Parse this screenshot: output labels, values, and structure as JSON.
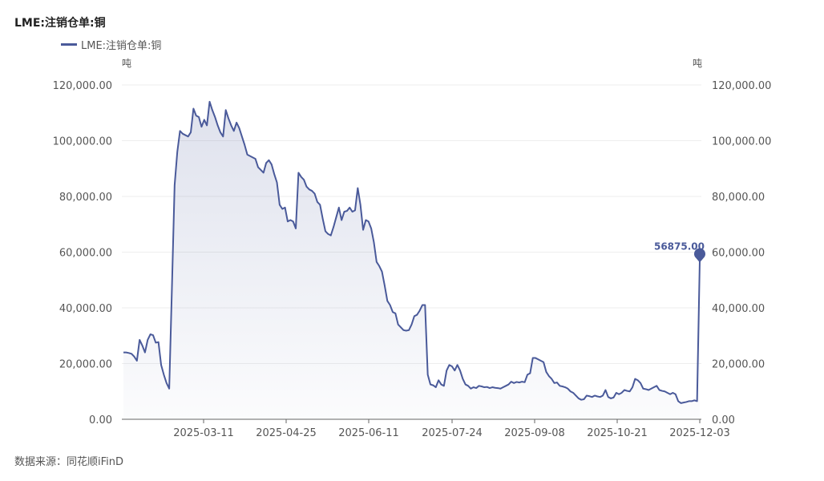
{
  "title": "LME:注销仓单:铜",
  "source": "数据来源：同花顺iFinD",
  "chart_data": {
    "type": "area",
    "title": "LME:注销仓单:铜",
    "series": [
      {
        "name": "LME:注销仓单:铜",
        "color": "#4a5a9a"
      }
    ],
    "ylabel_left": "吨",
    "ylabel_right": "吨",
    "ylim": [
      0,
      120000
    ],
    "yticks": [
      "0.00",
      "20,000.00",
      "40,000.00",
      "60,000.00",
      "80,000.00",
      "100,000.00",
      "120,000.00"
    ],
    "xticks": [
      "2025-03-11",
      "2025-04-25",
      "2025-06-11",
      "2025-07-24",
      "2025-09-08",
      "2025-10-21",
      "2025-12-03"
    ],
    "last_label": "56875.00",
    "values": [
      24000,
      24000,
      23800,
      23500,
      22500,
      21000,
      28500,
      26500,
      24000,
      28500,
      30500,
      30200,
      27500,
      27700,
      19500,
      16000,
      13000,
      11000,
      47000,
      84000,
      96000,
      103500,
      102500,
      102000,
      101500,
      103000,
      111500,
      109000,
      108500,
      105000,
      107500,
      105500,
      114000,
      111000,
      108500,
      105500,
      103000,
      101500,
      111000,
      108000,
      105500,
      103500,
      106500,
      104500,
      101500,
      98500,
      95000,
      94500,
      94000,
      93500,
      90500,
      89500,
      88500,
      92000,
      93000,
      91500,
      88000,
      85000,
      77000,
      75500,
      76000,
      71000,
      71500,
      71000,
      68500,
      88500,
      87000,
      86000,
      83500,
      82500,
      82000,
      81000,
      78000,
      77000,
      72000,
      67500,
      66500,
      66000,
      69000,
      72500,
      76000,
      71500,
      74500,
      74800,
      76000,
      74500,
      75000,
      83000,
      77000,
      68000,
      71500,
      71000,
      68500,
      63500,
      56500,
      55000,
      53000,
      48000,
      42500,
      41000,
      38500,
      38000,
      34000,
      33000,
      32000,
      31800,
      32000,
      34000,
      37000,
      37500,
      39000,
      41000,
      41000,
      16000,
      12500,
      12200,
      11500,
      14000,
      12500,
      12000,
      17500,
      19500,
      19000,
      17500,
      19500,
      17500,
      14500,
      12500,
      12000,
      11000,
      11500,
      11200,
      12000,
      11800,
      11500,
      11600,
      11200,
      11500,
      11300,
      11200,
      11000,
      11500,
      12000,
      12500,
      13500,
      13000,
      13400,
      13200,
      13500,
      13300,
      16000,
      16500,
      22000,
      22000,
      21500,
      21000,
      20500,
      17000,
      15500,
      14500,
      13000,
      13200,
      12000,
      11800,
      11500,
      11000,
      10000,
      9500,
      8500,
      7500,
      7000,
      7200,
      8500,
      8300,
      8000,
      8500,
      8200,
      8000,
      8500,
      10500,
      8000,
      7500,
      7800,
      9500,
      9000,
      9500,
      10500,
      10200,
      10000,
      11500,
      14500,
      14000,
      13000,
      11000,
      10800,
      10500,
      11000,
      11500,
      12000,
      10500,
      10200,
      10000,
      9500,
      9000,
      9500,
      9000,
      6500,
      5800,
      6000,
      6200,
      6500,
      6500,
      6800,
      6500,
      56875
    ]
  }
}
